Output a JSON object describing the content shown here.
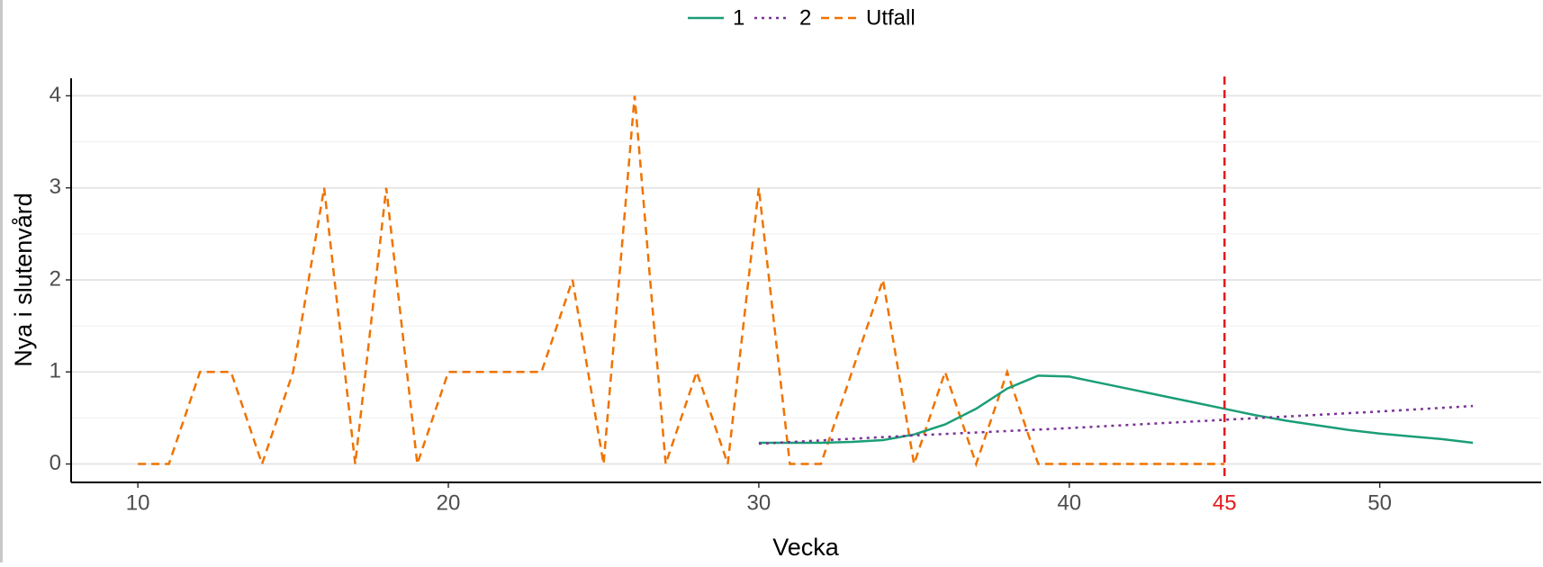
{
  "chart_data": {
    "type": "line",
    "x_label": "Vecka",
    "y_label": "Nya i slutenvård",
    "xlim": [
      7.85,
      55.2
    ],
    "ylim": [
      -0.2,
      4.19
    ],
    "xticks": [
      10,
      20,
      30,
      40,
      50
    ],
    "yticks": [
      0,
      1,
      2,
      3,
      4
    ],
    "yminor": [
      0.5,
      1.5,
      2.5,
      3.5
    ],
    "grid": true,
    "legend": "top",
    "vline": {
      "x": 45,
      "color": "#e41a1c"
    },
    "series": [
      {
        "name": "1",
        "color": "#1b9e77",
        "dash": "solid",
        "x": [
          30,
          31,
          32,
          33,
          34,
          35,
          36,
          37,
          38,
          39,
          40,
          41,
          42,
          43,
          44,
          45,
          46,
          47,
          48,
          49,
          50,
          51,
          52,
          53
        ],
        "values": [
          0.23,
          0.23,
          0.23,
          0.24,
          0.26,
          0.32,
          0.43,
          0.6,
          0.82,
          0.96,
          0.95,
          0.88,
          0.81,
          0.74,
          0.67,
          0.6,
          0.53,
          0.47,
          0.42,
          0.37,
          0.33,
          0.3,
          0.27,
          0.23
        ]
      },
      {
        "name": "2",
        "color": "#7b3294",
        "dash": "dotted",
        "x": [
          30,
          35,
          40,
          45,
          50,
          53
        ],
        "values": [
          0.22,
          0.31,
          0.39,
          0.48,
          0.57,
          0.63
        ]
      },
      {
        "name": "Utfall",
        "color": "#ef7300",
        "dash": "dashed",
        "x": [
          10,
          11,
          12,
          13,
          14,
          15,
          16,
          17,
          18,
          19,
          20,
          21,
          22,
          23,
          24,
          25,
          26,
          27,
          28,
          29,
          30,
          31,
          32,
          33,
          34,
          35,
          36,
          37,
          38,
          39,
          40,
          41,
          42,
          43,
          44,
          45
        ],
        "values": [
          0,
          0,
          1,
          1,
          0,
          1,
          3,
          0,
          3,
          0,
          1,
          1,
          1,
          1,
          2,
          0,
          4,
          0,
          1,
          0,
          3,
          0,
          0,
          1,
          2,
          0,
          1,
          0,
          1,
          0,
          0,
          0,
          0,
          0,
          0,
          0
        ]
      }
    ]
  }
}
